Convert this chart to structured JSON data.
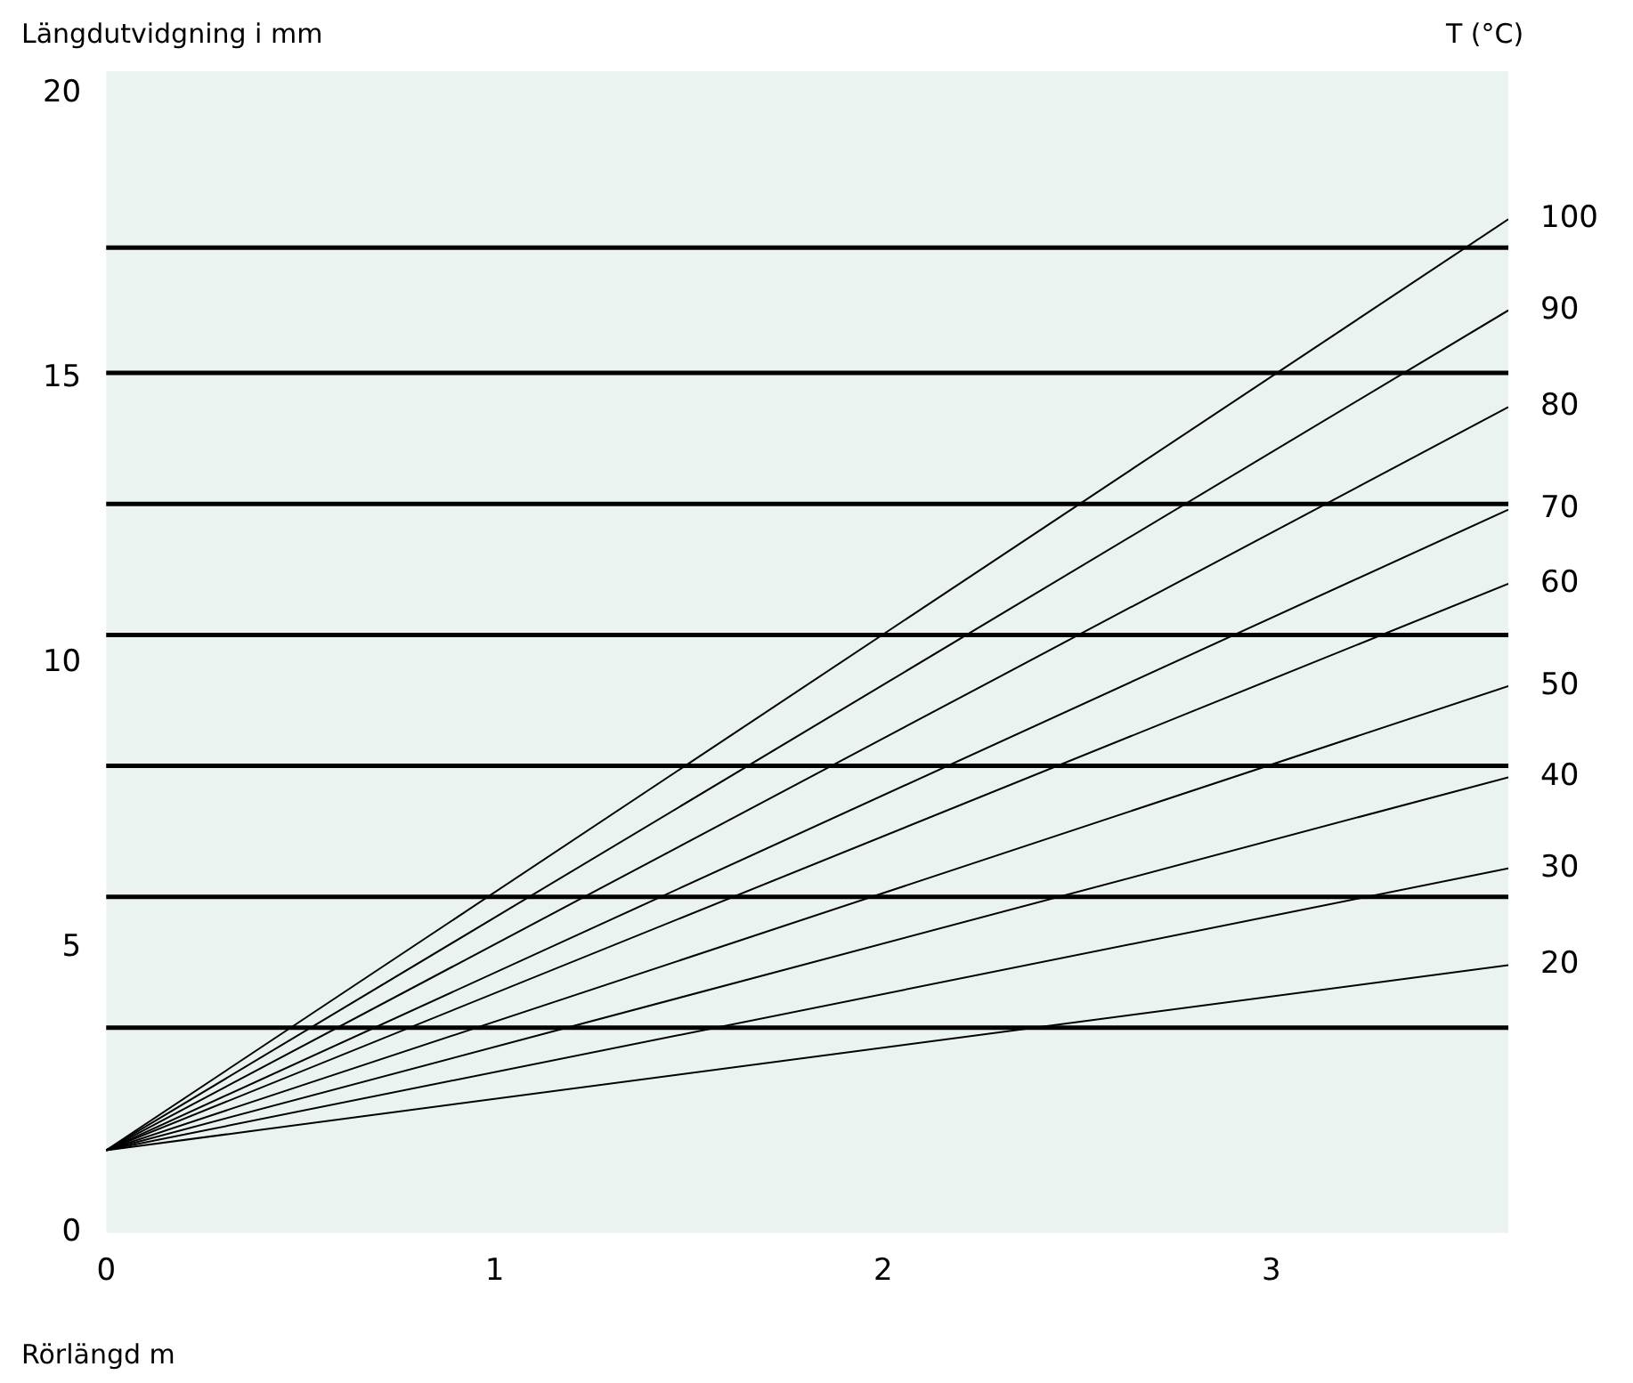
{
  "chart_data": {
    "type": "line",
    "xlabel": "Rörlängd m",
    "ylabel": "Längdutvidgning i mm",
    "legend_title": "T (°C)",
    "x": [
      0,
      3.61
    ],
    "xlim": [
      0,
      3.61
    ],
    "xticks": [
      0,
      1,
      2,
      3
    ],
    "ylim": [
      0,
      20.4
    ],
    "yticks": [
      0,
      5,
      10,
      15,
      20
    ],
    "grid": false,
    "legend": "right",
    "marker": "none",
    "line_style": "solid",
    "series": [
      {
        "name": "100",
        "color": "#000000",
        "values": [
          1.45,
          17.8
        ]
      },
      {
        "name": "90",
        "color": "#000000",
        "values": [
          1.45,
          16.2
        ]
      },
      {
        "name": "80",
        "color": "#000000",
        "values": [
          1.45,
          14.5
        ]
      },
      {
        "name": "70",
        "color": "#000000",
        "values": [
          1.45,
          12.7
        ]
      },
      {
        "name": "60",
        "color": "#000000",
        "values": [
          1.45,
          11.4
        ]
      },
      {
        "name": "50",
        "color": "#000000",
        "values": [
          1.45,
          9.6
        ]
      },
      {
        "name": "40",
        "color": "#000000",
        "values": [
          1.45,
          8.0
        ]
      },
      {
        "name": "30",
        "color": "#000000",
        "values": [
          1.45,
          6.4
        ]
      },
      {
        "name": "20",
        "color": "#000000",
        "values": [
          1.45,
          4.7
        ]
      }
    ],
    "ref_lines": [
      {
        "axis": "y",
        "value": 17.3,
        "color": "#000000"
      },
      {
        "axis": "y",
        "value": 15.1,
        "color": "#000000"
      },
      {
        "axis": "y",
        "value": 12.8,
        "color": "#000000"
      },
      {
        "axis": "y",
        "value": 10.5,
        "color": "#000000"
      },
      {
        "axis": "y",
        "value": 8.2,
        "color": "#000000"
      },
      {
        "axis": "y",
        "value": 5.9,
        "color": "#000000"
      },
      {
        "axis": "y",
        "value": 3.6,
        "color": "#000000"
      }
    ]
  }
}
